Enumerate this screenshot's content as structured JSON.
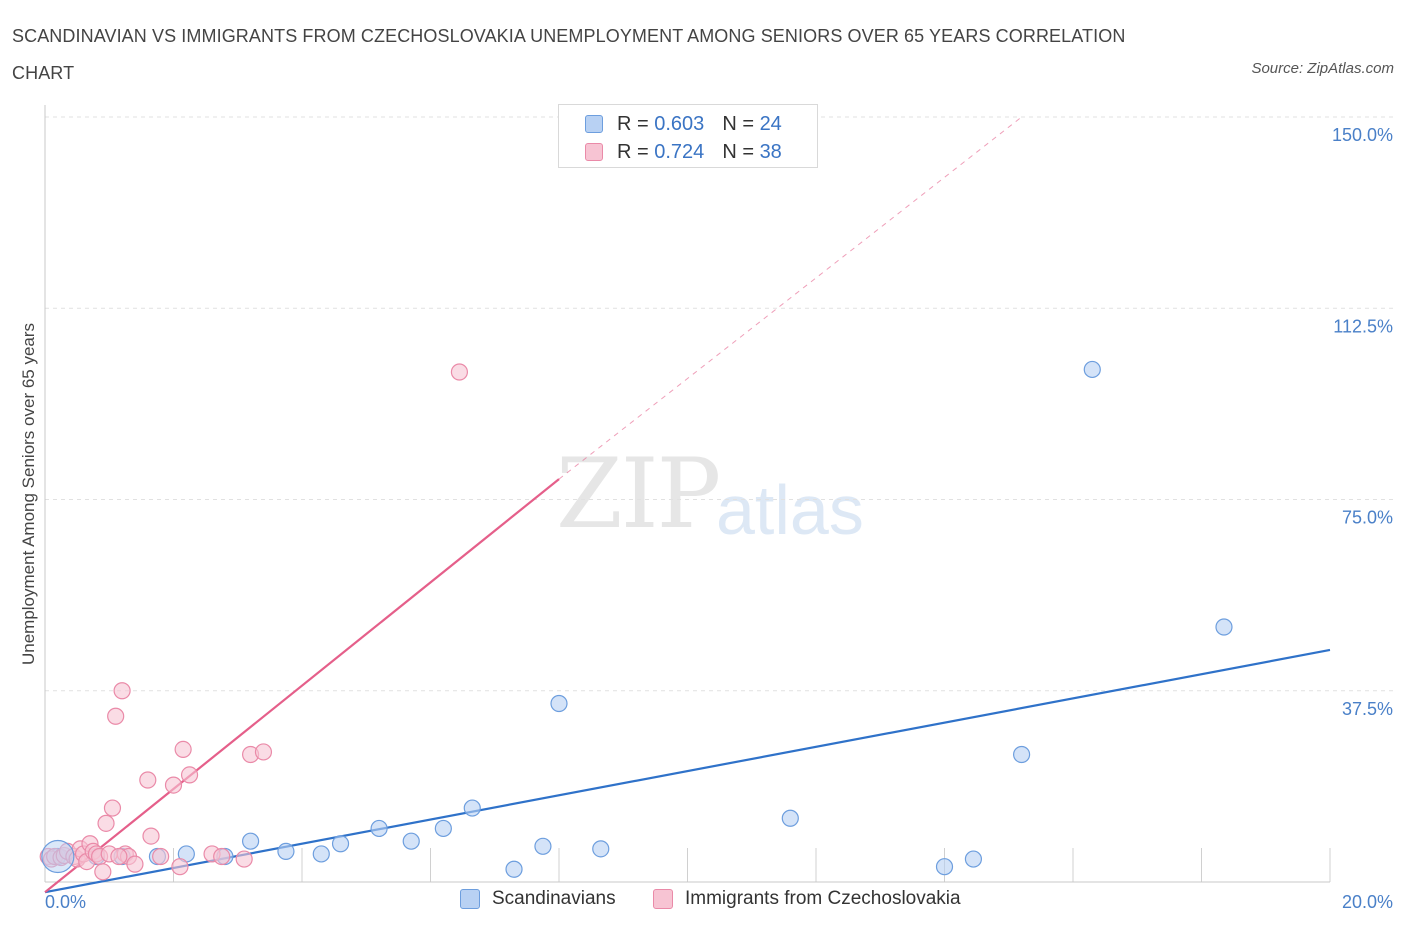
{
  "title": "SCANDINAVIAN VS IMMIGRANTS FROM CZECHOSLOVAKIA UNEMPLOYMENT AMONG SENIORS OVER 65 YEARS CORRELATION CHART",
  "source": "Source: ZipAtlas.com",
  "watermark_zip": "ZIP",
  "watermark_atlas": "atlas",
  "legend": {
    "rows": [
      {
        "r_label": "R =",
        "r_value": "0.603",
        "n_label": "N =",
        "n_value": "24"
      },
      {
        "r_label": "R =",
        "r_value": "0.724",
        "n_label": "N =",
        "n_value": "38"
      }
    ]
  },
  "bottom_legend": {
    "series1": "Scandinavians",
    "series2": "Immigrants from Czechoslovakia"
  },
  "colors": {
    "blue_fill": "#b8d1f3",
    "blue_stroke": "#6d9ede",
    "blue_line": "#2f72c9",
    "pink_fill": "#f7c4d3",
    "pink_stroke": "#ea8aa8",
    "pink_line": "#e55f8a",
    "grid": "#e1e1e1",
    "tick_text": "#4a80c8"
  },
  "chart_data": {
    "type": "scatter",
    "xlabel": "",
    "ylabel": "Unemployment Among Seniors over 65 years",
    "xlim": [
      0,
      20
    ],
    "ylim": [
      0,
      150
    ],
    "x_tick_labels": [
      "0.0%",
      "20.0%"
    ],
    "y_ticks": [
      37.5,
      75.0,
      112.5,
      150.0
    ],
    "y_tick_labels": [
      "37.5%",
      "75.0%",
      "112.5%",
      "150.0%"
    ],
    "grid": true,
    "series": [
      {
        "name": "Scandinavians",
        "color": "#6d9ede",
        "points": [
          [
            0.2,
            5.0
          ],
          [
            0.8,
            5.0
          ],
          [
            1.2,
            5.0
          ],
          [
            1.75,
            5.0
          ],
          [
            2.2,
            5.5
          ],
          [
            2.8,
            5.0
          ],
          [
            3.2,
            8.0
          ],
          [
            3.75,
            6.0
          ],
          [
            4.3,
            5.5
          ],
          [
            4.6,
            7.5
          ],
          [
            5.2,
            10.5
          ],
          [
            5.7,
            8.0
          ],
          [
            6.2,
            10.5
          ],
          [
            6.65,
            14.5
          ],
          [
            7.3,
            2.5
          ],
          [
            7.75,
            7.0
          ],
          [
            8.0,
            35.0
          ],
          [
            8.65,
            6.5
          ],
          [
            11.6,
            12.5
          ],
          [
            14.0,
            3.0
          ],
          [
            14.45,
            4.5
          ],
          [
            15.2,
            25.0
          ],
          [
            16.3,
            100.5
          ],
          [
            18.35,
            50.0
          ]
        ],
        "trend": {
          "x": [
            0,
            20
          ],
          "y": [
            -2.0,
            45.5
          ]
        }
      },
      {
        "name": "Immigrants from Czechoslovakia",
        "color": "#ea8aa8",
        "points": [
          [
            0.05,
            5.0
          ],
          [
            0.1,
            4.5
          ],
          [
            0.15,
            5.0
          ],
          [
            0.25,
            4.8
          ],
          [
            0.3,
            5.2
          ],
          [
            0.35,
            6.0
          ],
          [
            0.45,
            5.0
          ],
          [
            0.5,
            4.5
          ],
          [
            0.55,
            6.5
          ],
          [
            0.6,
            5.5
          ],
          [
            0.65,
            4.0
          ],
          [
            0.7,
            7.5
          ],
          [
            0.75,
            6.0
          ],
          [
            0.8,
            5.5
          ],
          [
            0.85,
            5.0
          ],
          [
            0.9,
            2.0
          ],
          [
            0.95,
            11.5
          ],
          [
            1.0,
            5.5
          ],
          [
            1.05,
            14.5
          ],
          [
            1.1,
            32.5
          ],
          [
            1.2,
            37.5
          ],
          [
            1.25,
            5.5
          ],
          [
            1.3,
            5.0
          ],
          [
            1.4,
            3.5
          ],
          [
            1.6,
            20.0
          ],
          [
            1.65,
            9.0
          ],
          [
            1.8,
            5.0
          ],
          [
            2.0,
            19.0
          ],
          [
            2.1,
            3.0
          ],
          [
            2.15,
            26.0
          ],
          [
            2.25,
            21.0
          ],
          [
            2.6,
            5.5
          ],
          [
            2.75,
            5.0
          ],
          [
            3.1,
            4.5
          ],
          [
            3.2,
            25.0
          ],
          [
            3.4,
            25.5
          ],
          [
            6.45,
            100.0
          ],
          [
            1.15,
            5.0
          ]
        ],
        "trend": {
          "x": [
            0,
            8.0
          ],
          "y": [
            -2.0,
            79.0
          ]
        },
        "trend_extension": {
          "x": [
            8.0,
            15.2
          ],
          "y": [
            79.0,
            150.0
          ]
        }
      }
    ]
  }
}
